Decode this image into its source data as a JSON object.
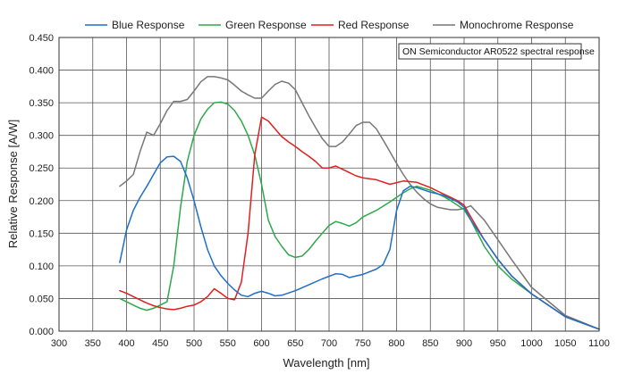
{
  "chart_data": {
    "type": "line",
    "title": "",
    "annotation": "ON Semiconductor AR0522 spectral response",
    "xlabel": "Wavelength [nm]",
    "ylabel": "Relative Response [A/W]",
    "xlim": [
      300,
      1100
    ],
    "ylim": [
      0,
      0.45
    ],
    "xticks": [
      300,
      350,
      400,
      450,
      500,
      550,
      600,
      650,
      700,
      750,
      800,
      850,
      900,
      950,
      1000,
      1050,
      1100
    ],
    "yticks": [
      0,
      0.05,
      0.1,
      0.15,
      0.2,
      0.25,
      0.3,
      0.35,
      0.4,
      0.45
    ],
    "xtick_labels": [
      "300",
      "350",
      "400",
      "450",
      "500",
      "550",
      "600",
      "650",
      "700",
      "750",
      "800",
      "850",
      "900",
      "950",
      "1000",
      "1050",
      "1100"
    ],
    "ytick_labels": [
      "0.000",
      "0.050",
      "0.100",
      "0.150",
      "0.200",
      "0.250",
      "0.300",
      "0.350",
      "0.400",
      "0.450"
    ],
    "grid": true,
    "legend_position": "top",
    "series": [
      {
        "name": "Blue Response",
        "color": "#1f6fc8",
        "x": [
          390,
          400,
          410,
          420,
          430,
          440,
          450,
          460,
          470,
          480,
          490,
          500,
          510,
          520,
          530,
          540,
          550,
          560,
          570,
          580,
          590,
          600,
          610,
          620,
          630,
          650,
          670,
          690,
          710,
          720,
          730,
          750,
          770,
          780,
          790,
          800,
          810,
          820,
          830,
          850,
          870,
          880,
          890,
          900,
          910,
          930,
          950,
          970,
          1000,
          1050,
          1100
        ],
        "y": [
          0.105,
          0.155,
          0.185,
          0.205,
          0.222,
          0.24,
          0.258,
          0.267,
          0.268,
          0.26,
          0.235,
          0.2,
          0.16,
          0.125,
          0.1,
          0.085,
          0.073,
          0.063,
          0.055,
          0.053,
          0.058,
          0.061,
          0.058,
          0.054,
          0.055,
          0.062,
          0.071,
          0.08,
          0.088,
          0.087,
          0.082,
          0.087,
          0.095,
          0.102,
          0.125,
          0.185,
          0.215,
          0.222,
          0.22,
          0.213,
          0.208,
          0.203,
          0.198,
          0.19,
          0.17,
          0.14,
          0.11,
          0.085,
          0.057,
          0.022,
          0.003
        ]
      },
      {
        "name": "Green Response",
        "color": "#2ea84a",
        "x": [
          390,
          400,
          410,
          420,
          430,
          440,
          450,
          460,
          470,
          480,
          490,
          500,
          510,
          520,
          530,
          540,
          550,
          560,
          570,
          580,
          590,
          600,
          610,
          620,
          630,
          640,
          650,
          660,
          670,
          680,
          690,
          700,
          710,
          720,
          730,
          740,
          750,
          770,
          790,
          810,
          820,
          830,
          850,
          870,
          880,
          890,
          900,
          910,
          930,
          950,
          970,
          1000,
          1050,
          1100
        ],
        "y": [
          0.05,
          0.045,
          0.04,
          0.035,
          0.032,
          0.035,
          0.04,
          0.045,
          0.1,
          0.19,
          0.26,
          0.3,
          0.325,
          0.34,
          0.35,
          0.351,
          0.348,
          0.338,
          0.322,
          0.3,
          0.27,
          0.225,
          0.17,
          0.145,
          0.13,
          0.117,
          0.113,
          0.115,
          0.125,
          0.138,
          0.15,
          0.162,
          0.168,
          0.165,
          0.161,
          0.166,
          0.175,
          0.185,
          0.198,
          0.212,
          0.218,
          0.222,
          0.216,
          0.206,
          0.2,
          0.193,
          0.186,
          0.17,
          0.13,
          0.1,
          0.08,
          0.057,
          0.022,
          0.003
        ]
      },
      {
        "name": "Red Response",
        "color": "#e02020",
        "x": [
          390,
          400,
          410,
          420,
          430,
          440,
          450,
          460,
          470,
          480,
          490,
          500,
          510,
          520,
          530,
          540,
          550,
          560,
          570,
          580,
          590,
          600,
          610,
          620,
          630,
          640,
          650,
          660,
          670,
          680,
          690,
          700,
          710,
          720,
          730,
          740,
          750,
          770,
          790,
          810,
          830,
          850,
          870,
          880,
          890,
          900,
          910,
          930,
          950,
          970,
          1000,
          1050,
          1100
        ],
        "y": [
          0.062,
          0.058,
          0.053,
          0.048,
          0.043,
          0.039,
          0.036,
          0.034,
          0.033,
          0.035,
          0.038,
          0.04,
          0.045,
          0.053,
          0.065,
          0.058,
          0.05,
          0.048,
          0.075,
          0.15,
          0.27,
          0.328,
          0.322,
          0.31,
          0.298,
          0.29,
          0.283,
          0.275,
          0.268,
          0.26,
          0.25,
          0.25,
          0.253,
          0.248,
          0.243,
          0.238,
          0.235,
          0.232,
          0.225,
          0.23,
          0.228,
          0.22,
          0.21,
          0.205,
          0.2,
          0.193,
          0.175,
          0.14,
          0.11,
          0.085,
          0.057,
          0.022,
          0.003
        ]
      },
      {
        "name": "Monochrome Response",
        "color": "#777777",
        "x": [
          390,
          400,
          410,
          420,
          430,
          440,
          450,
          460,
          470,
          480,
          490,
          500,
          510,
          520,
          530,
          540,
          550,
          560,
          570,
          580,
          590,
          600,
          610,
          620,
          630,
          640,
          650,
          660,
          670,
          680,
          690,
          700,
          710,
          720,
          730,
          740,
          750,
          760,
          770,
          780,
          790,
          800,
          810,
          820,
          830,
          840,
          850,
          860,
          870,
          880,
          890,
          900,
          910,
          930,
          950,
          970,
          1000,
          1050,
          1100
        ],
        "y": [
          0.222,
          0.23,
          0.24,
          0.275,
          0.305,
          0.3,
          0.318,
          0.338,
          0.352,
          0.352,
          0.355,
          0.368,
          0.382,
          0.39,
          0.39,
          0.388,
          0.385,
          0.377,
          0.368,
          0.362,
          0.357,
          0.357,
          0.368,
          0.378,
          0.383,
          0.38,
          0.37,
          0.35,
          0.33,
          0.312,
          0.295,
          0.283,
          0.283,
          0.29,
          0.302,
          0.315,
          0.32,
          0.32,
          0.31,
          0.293,
          0.275,
          0.257,
          0.24,
          0.225,
          0.213,
          0.203,
          0.195,
          0.19,
          0.188,
          0.186,
          0.186,
          0.188,
          0.192,
          0.17,
          0.14,
          0.11,
          0.067,
          0.024,
          0.003
        ]
      }
    ]
  }
}
